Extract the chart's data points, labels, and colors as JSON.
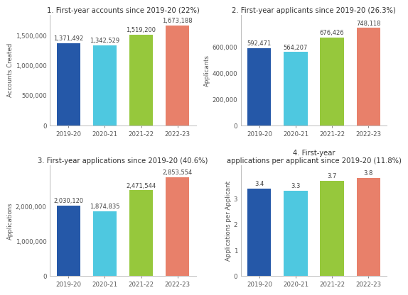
{
  "subplots": [
    {
      "title": "1. First-year accounts since 2019-20 (22%)",
      "ylabel": "Accounts Created",
      "categories": [
        "2019-20",
        "2020-21",
        "2021-22",
        "2022-23"
      ],
      "values": [
        1371492,
        1342529,
        1519200,
        1673188
      ],
      "labels": [
        "1,371,492",
        "1,342,529",
        "1,519,200",
        "1,673,188"
      ],
      "colors": [
        "#2558a8",
        "#4ec8e0",
        "#96c83c",
        "#e8806a"
      ],
      "ylim": [
        0,
        1850000
      ],
      "yticks": [
        0,
        500000,
        1000000,
        1500000
      ],
      "is_float": false
    },
    {
      "title": "2. First-year applicants since 2019-20 (26.3%)",
      "ylabel": "Applicants",
      "categories": [
        "2019-20",
        "2020-21",
        "2021-22",
        "2022-23"
      ],
      "values": [
        592471,
        564207,
        676426,
        748118
      ],
      "labels": [
        "592,471",
        "564,207",
        "676,426",
        "748,118"
      ],
      "colors": [
        "#2558a8",
        "#4ec8e0",
        "#96c83c",
        "#e8806a"
      ],
      "ylim": [
        0,
        850000
      ],
      "yticks": [
        0,
        200000,
        400000,
        600000
      ],
      "is_float": false
    },
    {
      "title": "3. First-year applications since 2019-20 (40.6%)",
      "ylabel": "Applications",
      "categories": [
        "2019-20",
        "2020-21",
        "2021-22",
        "2022-23"
      ],
      "values": [
        2030120,
        1874835,
        2471544,
        2853554
      ],
      "labels": [
        "2,030,120",
        "1,874,835",
        "2,471,544",
        "2,853,554"
      ],
      "colors": [
        "#2558a8",
        "#4ec8e0",
        "#96c83c",
        "#e8806a"
      ],
      "ylim": [
        0,
        3200000
      ],
      "yticks": [
        0,
        1000000,
        2000000
      ],
      "is_float": false
    },
    {
      "title": "4. First-year\napplications per applicant since 2019-20 (11.8%)",
      "ylabel": "Applications per Applicant",
      "categories": [
        "2019-20",
        "2020-21",
        "2021-22",
        "2022-23"
      ],
      "values": [
        3.4,
        3.3,
        3.7,
        3.8
      ],
      "labels": [
        "3.4",
        "3.3",
        "3.7",
        "3.8"
      ],
      "colors": [
        "#2558a8",
        "#4ec8e0",
        "#96c83c",
        "#e8806a"
      ],
      "ylim": [
        0,
        4.3
      ],
      "yticks": [
        0,
        1,
        2,
        3
      ],
      "is_float": true
    }
  ],
  "bg_color": "#ffffff",
  "label_fontsize": 6.0,
  "title_fontsize": 7.2,
  "tick_fontsize": 6.2,
  "ylabel_fontsize": 6.2,
  "bar_width": 0.65
}
